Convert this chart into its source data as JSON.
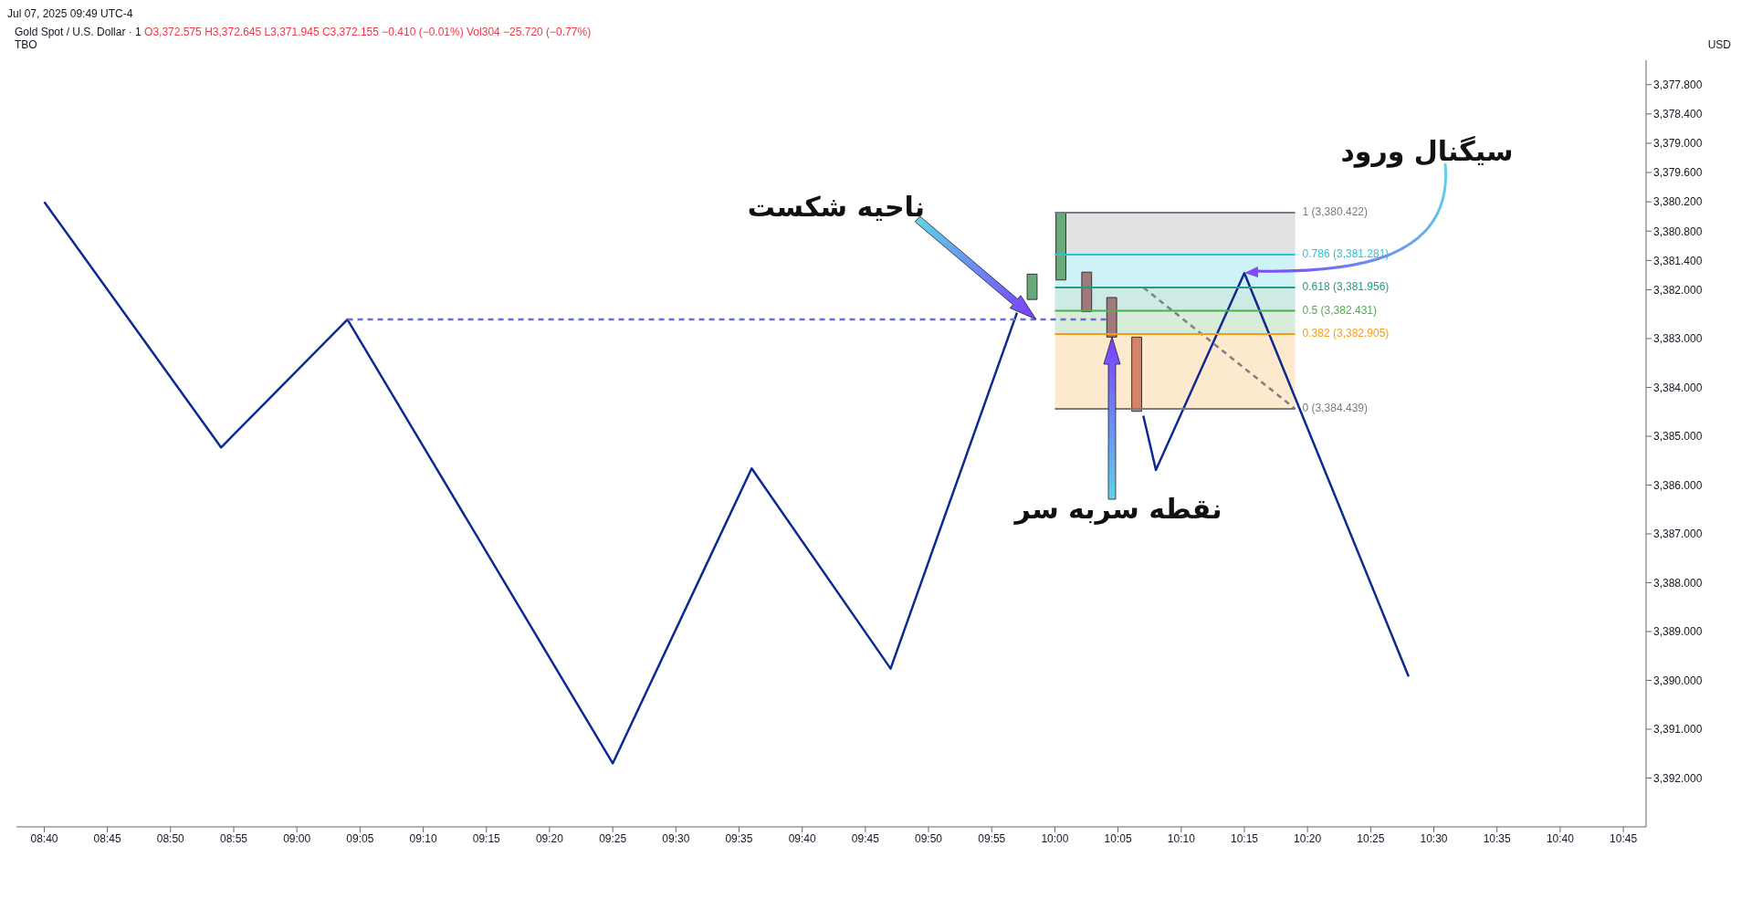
{
  "chart_data": {
    "type": "line",
    "title": "Gold Spot / U.S. Dollar · 1",
    "subtitle": "O3,372.575 H3,372.645 L3,371.945 C3,372.155 −0.410 (−0.01%) Vol304 −25.720 (−0.77%)",
    "ylabel": "USD",
    "annotations": [
      "Jul 07, 2025 09:49 UTC-4",
      "TBO",
      "ناحیه شکست",
      "سیگنال ورود",
      "نقطه سربه سر"
    ],
    "xlim": [
      8.63,
      10.78
    ],
    "xticks": [
      {
        "value": 8.6667,
        "label": "08:40"
      },
      {
        "value": 8.75,
        "label": "08:45"
      },
      {
        "value": 8.8333,
        "label": "08:50"
      },
      {
        "value": 8.9167,
        "label": "08:55"
      },
      {
        "value": 9,
        "label": "09:00"
      },
      {
        "value": 9.0833,
        "label": "09:05"
      },
      {
        "value": 9.1667,
        "label": "09:10"
      },
      {
        "value": 9.25,
        "label": "09:15"
      },
      {
        "value": 9.3333,
        "label": "09:20"
      },
      {
        "value": 9.4167,
        "label": "09:25"
      },
      {
        "value": 9.5,
        "label": "09:30"
      },
      {
        "value": 9.5833,
        "label": "09:35"
      },
      {
        "value": 9.6667,
        "label": "09:40"
      },
      {
        "value": 9.75,
        "label": "09:45"
      },
      {
        "value": 9.8333,
        "label": "09:50"
      },
      {
        "value": 9.9167,
        "label": "09:55"
      },
      {
        "value": 10,
        "label": "10:00"
      },
      {
        "value": 10.0833,
        "label": "10:05"
      },
      {
        "value": 10.1667,
        "label": "10:10"
      },
      {
        "value": 10.25,
        "label": "10:15"
      },
      {
        "value": 10.3333,
        "label": "10:20"
      },
      {
        "value": 10.4167,
        "label": "10:25"
      },
      {
        "value": 10.5,
        "label": "10:30"
      },
      {
        "value": 10.5833,
        "label": "10:35"
      },
      {
        "value": 10.6667,
        "label": "10:40"
      },
      {
        "value": 10.75,
        "label": "10:45"
      }
    ],
    "ylim": [
      3393.0,
      3377.3
    ],
    "yticks": [
      {
        "value": 3377.8,
        "label": "3,377.800"
      },
      {
        "value": 3378.4,
        "label": "3,378.400"
      },
      {
        "value": 3379,
        "label": "3,379.000"
      },
      {
        "value": 3379.6,
        "label": "3,379.600"
      },
      {
        "value": 3380.2,
        "label": "3,380.200"
      },
      {
        "value": 3380.8,
        "label": "3,380.800"
      },
      {
        "value": 3381.4,
        "label": "3,381.400"
      },
      {
        "value": 3382,
        "label": "3,382.000"
      },
      {
        "value": 3383,
        "label": "3,383.000"
      },
      {
        "value": 3384,
        "label": "3,384.000"
      },
      {
        "value": 3385,
        "label": "3,385.000"
      },
      {
        "value": 3386,
        "label": "3,386.000"
      },
      {
        "value": 3387,
        "label": "3,387.000"
      },
      {
        "value": 3388,
        "label": "3,388.000"
      },
      {
        "value": 3389,
        "label": "3,389.000"
      },
      {
        "value": 3390,
        "label": "3,390.000"
      },
      {
        "value": 3391,
        "label": "3,391.000"
      },
      {
        "value": 3392,
        "label": "3,392.000"
      }
    ],
    "grid": false,
    "legend": false,
    "marker": "none",
    "line_style": "solid",
    "series": [
      {
        "color": "#0d2a8f",
        "x": [
          8.6667,
          8.9,
          9.0667,
          9.4167,
          9.6,
          9.7833,
          9.95
        ],
        "values": [
          3380.2,
          3385.23,
          3382.61,
          3391.7,
          3385.66,
          3389.76,
          3382.47
        ]
      },
      {
        "color": "#0d2a8f",
        "x": [
          10.1167,
          10.1333,
          10.25,
          10.4667
        ],
        "values": [
          3384.58,
          3385.69,
          3381.66,
          3389.92
        ]
      },
      {
        "color": "#6a6fd0",
        "line_style": "dashed",
        "x": [
          9.0667,
          10.075
        ],
        "values": [
          3382.61,
          3382.61
        ]
      },
      {
        "color": "#808080",
        "line_style": "dashed",
        "x": [
          10.117,
          10.317
        ],
        "values": [
          3381.956,
          3384.439
        ]
      },
      {
        "name": "1 (3,380.422)",
        "color": "#787b86",
        "x": [
          10.0,
          10.317
        ],
        "values": [
          3380.422,
          3380.422
        ],
        "lower": [
          3380.422,
          3380.422
        ],
        "upper": [
          3381.281,
          3381.281
        ]
      },
      {
        "name": "0.786 (3,381.281)",
        "color": "#26c6da",
        "x": [
          10.0,
          10.317
        ],
        "values": [
          3381.281,
          3381.281
        ],
        "lower": [
          3381.281,
          3381.281
        ],
        "upper": [
          3381.956,
          3381.956
        ]
      },
      {
        "name": "0.618 (3,381.956)",
        "color": "#1f9e89",
        "x": [
          10.0,
          10.317
        ],
        "values": [
          3381.956,
          3381.956
        ],
        "lower": [
          3381.956,
          3381.956
        ],
        "upper": [
          3382.431,
          3382.431
        ]
      },
      {
        "name": "0.5 (3,382.431)",
        "color": "#4caf50",
        "x": [
          10.0,
          10.317
        ],
        "values": [
          3382.431,
          3382.431
        ],
        "lower": [
          3382.431,
          3382.431
        ],
        "upper": [
          3382.905,
          3382.905
        ]
      },
      {
        "name": "0.382 (3,382.905)",
        "color": "#f59c1a",
        "x": [
          10.0,
          10.317
        ],
        "values": [
          3382.905,
          3382.905
        ],
        "lower": [
          3382.905,
          3382.905
        ],
        "upper": [
          3384.439,
          3384.439
        ]
      },
      {
        "name": "0 (3,384.439)",
        "color": "#787b86",
        "x": [
          10.0,
          10.317
        ],
        "values": [
          3384.439,
          3384.439
        ]
      },
      {
        "type": "candlestick",
        "x": [
          9.97,
          10.008,
          10.042,
          10.075,
          10.108
        ],
        "colors": [
          "#6aaa7a",
          "#6aaa7a",
          "#a07a7a",
          "#a07a7a",
          "#d9826a"
        ],
        "ohlc": [
          [
            3382.2,
            3382.2,
            3381.68,
            3381.68
          ],
          [
            3381.8,
            3381.8,
            3380.43,
            3380.43
          ],
          [
            3381.64,
            3382.45,
            3381.64,
            3382.45
          ],
          [
            3382.16,
            3382.97,
            3382.16,
            3382.97
          ],
          [
            3382.97,
            3384.49,
            3382.97,
            3384.49
          ]
        ]
      }
    ]
  }
}
